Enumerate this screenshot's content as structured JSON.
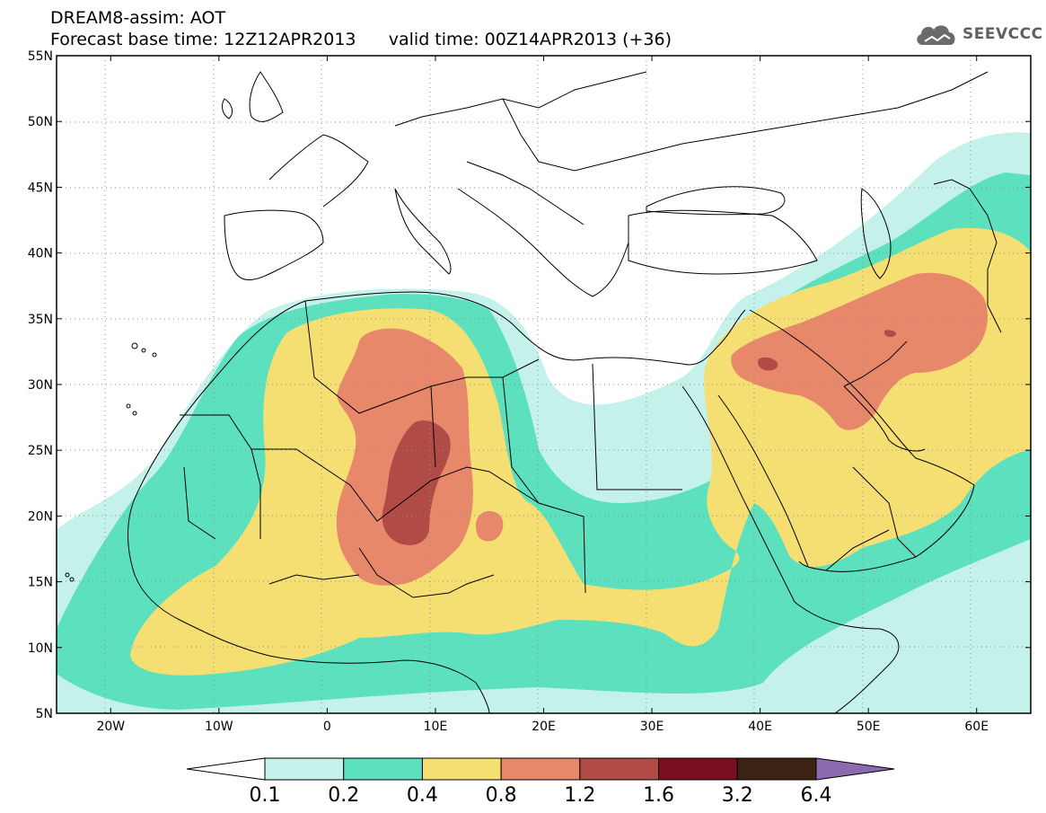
{
  "title": {
    "line1": "DREAM8-assim: AOT",
    "line2": "Forecast base time: 12Z12APR2013      valid time: 00Z14APR2013 (+36)"
  },
  "logo": {
    "text": "SEEVCCC",
    "icon": "cloud-icon"
  },
  "map": {
    "lon_range": [
      -25,
      65
    ],
    "lat_range": [
      5,
      55
    ],
    "lat_ticks": [
      {
        "value": 55,
        "label": "55N"
      },
      {
        "value": 50,
        "label": "50N"
      },
      {
        "value": 45,
        "label": "45N"
      },
      {
        "value": 40,
        "label": "40N"
      },
      {
        "value": 35,
        "label": "35N"
      },
      {
        "value": 30,
        "label": "30N"
      },
      {
        "value": 25,
        "label": "25N"
      },
      {
        "value": 20,
        "label": "20N"
      },
      {
        "value": 15,
        "label": "15N"
      },
      {
        "value": 10,
        "label": "10N"
      },
      {
        "value": 5,
        "label": "5N"
      }
    ],
    "lon_ticks": [
      {
        "value": -20,
        "label": "20W"
      },
      {
        "value": -10,
        "label": "10W"
      },
      {
        "value": 0,
        "label": "0"
      },
      {
        "value": 10,
        "label": "10E"
      },
      {
        "value": 20,
        "label": "20E"
      },
      {
        "value": 30,
        "label": "30E"
      },
      {
        "value": 40,
        "label": "40E"
      },
      {
        "value": 50,
        "label": "50E"
      },
      {
        "value": 60,
        "label": "60E"
      }
    ],
    "grid": "dotted"
  },
  "colorbar": {
    "labels": [
      "0.1",
      "0.2",
      "0.4",
      "0.8",
      "1.2",
      "1.6",
      "3.2",
      "6.4"
    ],
    "colors": [
      "#ffffff",
      "#c5f1eb",
      "#5de0be",
      "#f6df72",
      "#e8886a",
      "#b04c45",
      "#7a0f23",
      "#3b2314",
      "#8c6ab0"
    ]
  }
}
